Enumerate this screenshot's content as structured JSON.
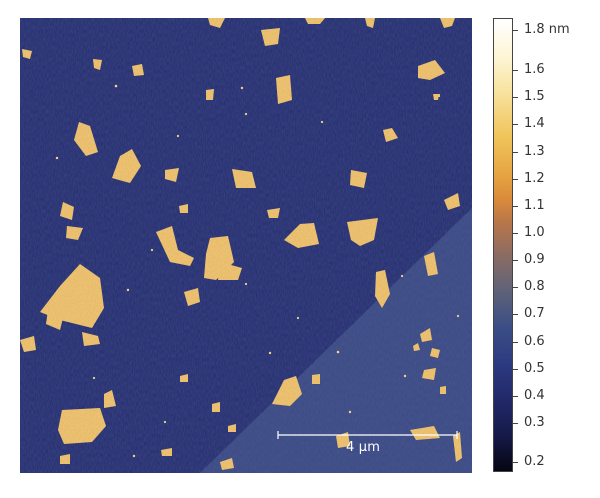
{
  "scale_bar": {
    "label": "4 µm"
  },
  "colorbar": {
    "labels": [
      "1.8 nm",
      "1.6",
      "1.5",
      "1.4",
      "1.3",
      "1.2",
      "1.1",
      "1.0",
      "0.9",
      "0.8",
      "0.7",
      "0.6",
      "0.5",
      "0.4",
      "0.3",
      "0.2"
    ]
  },
  "colors": {
    "substrate_dark": "#222a6a",
    "substrate_light": "#3b4a83",
    "flake": "#e8b85a"
  }
}
